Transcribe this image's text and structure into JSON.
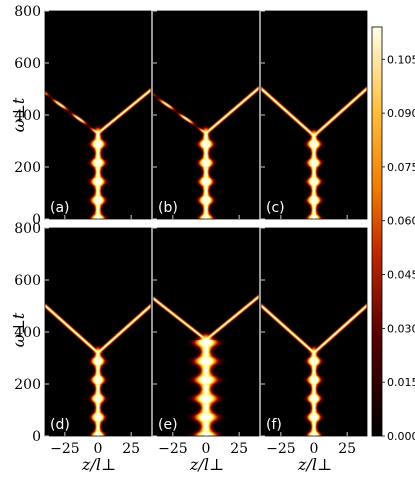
{
  "chart_data": {
    "type": "heatmap",
    "xlabel": "z/l⊥",
    "ylabel": "ω⊥t",
    "xlim": [
      -40,
      40
    ],
    "ylim": [
      0,
      800
    ],
    "x_ticks": [
      "−25",
      "0",
      "25"
    ],
    "x_tick_values": [
      -25,
      0,
      25
    ],
    "y_ticks": [
      "0",
      "200",
      "400",
      "600",
      "800"
    ],
    "y_tick_values": [
      0,
      200,
      400,
      600,
      800
    ],
    "colorbar": {
      "min": 0.0,
      "max": 0.114,
      "ticks": [
        "0.000",
        "0.015",
        "0.030",
        "0.045",
        "0.060",
        "0.075",
        "0.090",
        "0.105"
      ],
      "tick_values": [
        0.0,
        0.015,
        0.03,
        0.045,
        0.06,
        0.075,
        0.09,
        0.105
      ],
      "colormap": "afmhot"
    },
    "panels": [
      {
        "label": "(a)",
        "split_t": 330,
        "left_speed": 26,
        "right_speed": 24,
        "bound_width": 2.8,
        "left_blobs": true,
        "right_blobs": false
      },
      {
        "label": "(b)",
        "split_t": 330,
        "left_speed": 27,
        "right_speed": 23,
        "bound_width": 2.8,
        "left_blobs": true,
        "right_blobs": false
      },
      {
        "label": "(c)",
        "split_t": 320,
        "left_speed": 22,
        "right_speed": 22,
        "bound_width": 2.6,
        "left_blobs": false,
        "right_blobs": false
      },
      {
        "label": "(d)",
        "split_t": 320,
        "left_speed": 22,
        "right_speed": 22,
        "bound_width": 2.6,
        "left_blobs": false,
        "right_blobs": false
      },
      {
        "label": "(e)",
        "split_t": 370,
        "left_speed": 25,
        "right_speed": 24,
        "bound_width": 5.0,
        "left_blobs": false,
        "right_blobs": false
      },
      {
        "label": "(f)",
        "split_t": 320,
        "left_speed": 22,
        "right_speed": 22,
        "bound_width": 2.6,
        "left_blobs": false,
        "right_blobs": false
      }
    ]
  }
}
